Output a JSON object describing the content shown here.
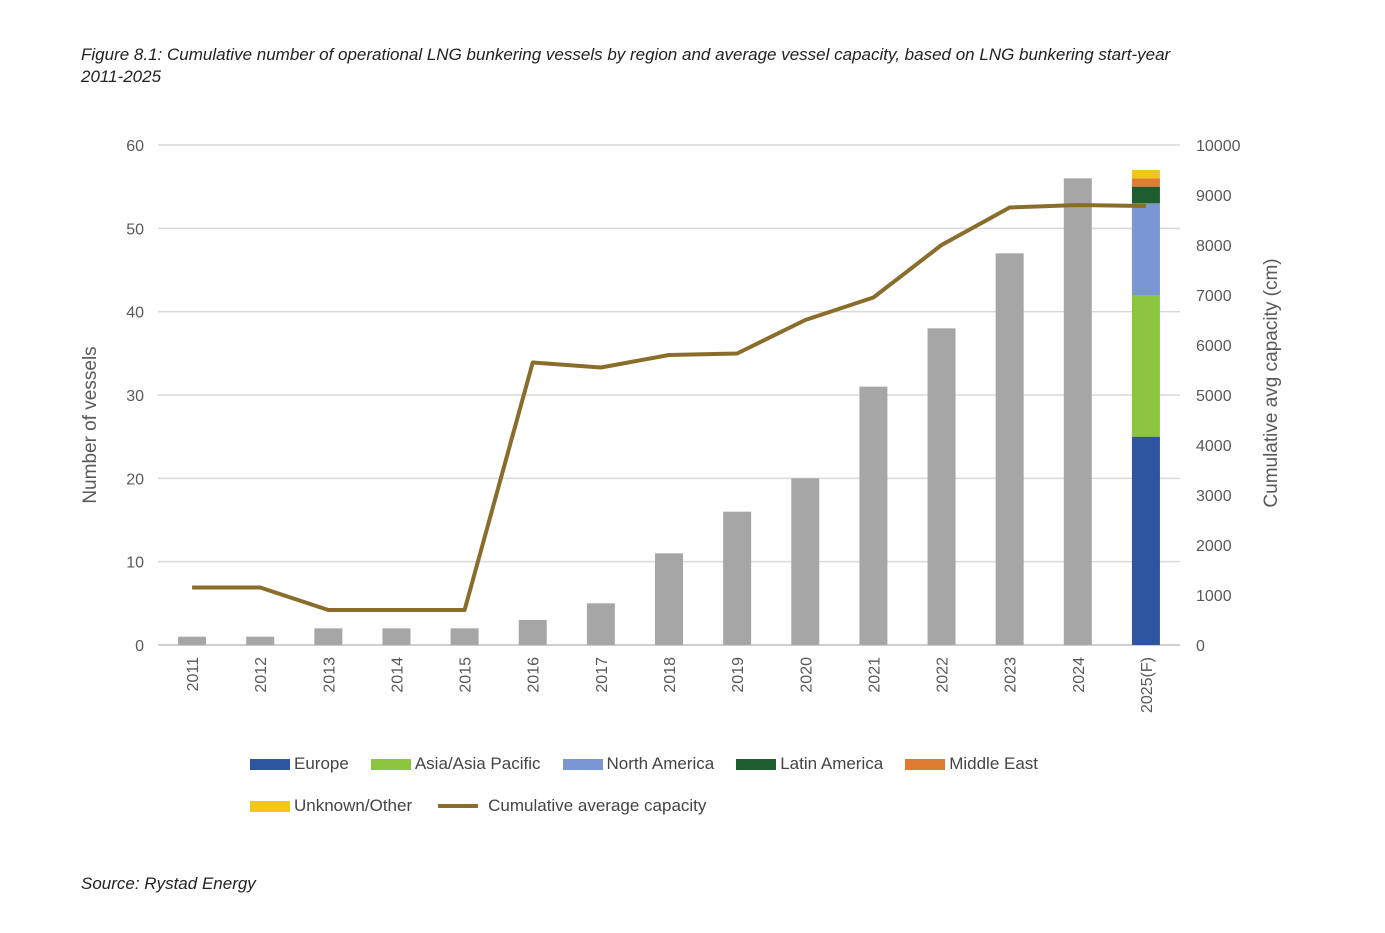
{
  "caption": "Figure 8.1: Cumulative number of operational LNG bunkering vessels by region and average vessel capacity, based on LNG bunkering start-year 2011-2025",
  "source": "Source: Rystad Energy",
  "chart_data": {
    "type": "bar",
    "title": "Figure 8.1: Cumulative number of operational LNG bunkering vessels by region and average vessel capacity, based on LNG bunkering start-year 2011-2025",
    "categories": [
      "2011",
      "2012",
      "2013",
      "2014",
      "2015",
      "2016",
      "2017",
      "2018",
      "2019",
      "2020",
      "2021",
      "2022",
      "2023",
      "2024",
      "2025(F)"
    ],
    "ylabel": "Number of vessels",
    "y2label": "Cumulative avg capacity (cm)",
    "ylim": [
      0,
      60
    ],
    "y2lim": [
      0,
      10000
    ],
    "yticks": [
      0,
      10,
      20,
      30,
      40,
      50,
      60
    ],
    "y2ticks": [
      0,
      1000,
      2000,
      3000,
      4000,
      5000,
      6000,
      7000,
      8000,
      9000,
      10000
    ],
    "grid": true,
    "total_vessels": {
      "color": "#a6a6a6",
      "values": [
        1,
        1,
        2,
        2,
        2,
        3,
        5,
        11,
        16,
        20,
        31,
        38,
        47,
        56,
        null
      ]
    },
    "series_2025_stack": [
      {
        "name": "Europe",
        "color": "#2e55a0",
        "value": 25
      },
      {
        "name": "Asia/Asia Pacific",
        "color": "#8cc63f",
        "value": 17
      },
      {
        "name": "North America",
        "color": "#7b96d4",
        "value": 11
      },
      {
        "name": "Latin America",
        "color": "#1f5c2e",
        "value": 2
      },
      {
        "name": "Middle East",
        "color": "#e07b32",
        "value": 1
      },
      {
        "name": "Unknown/Other",
        "color": "#f2c71b",
        "value": 1
      }
    ],
    "line": {
      "name": "Cumulative average capacity",
      "color": "#8a6d2b",
      "axis": "right",
      "values": [
        1150,
        1150,
        700,
        700,
        700,
        5650,
        5550,
        5800,
        5830,
        6500,
        6950,
        8000,
        8750,
        8800,
        8780
      ]
    },
    "legend_position": "bottom"
  }
}
